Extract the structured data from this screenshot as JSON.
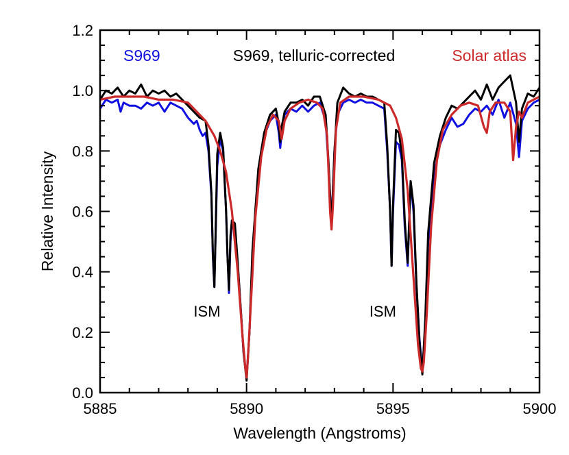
{
  "chart_data": {
    "type": "line",
    "title": "",
    "xlabel": "Wavelength (Angstroms)",
    "ylabel": "Relative Intensity",
    "xlim": [
      5885,
      5900
    ],
    "ylim": [
      0.0,
      1.2
    ],
    "xticks": [
      5885,
      5890,
      5895,
      5900
    ],
    "xtick_labels": [
      "5885",
      "5890",
      "5895",
      "5900"
    ],
    "yticks": [
      0.0,
      0.2,
      0.4,
      0.6,
      0.8,
      1.0,
      1.2
    ],
    "ytick_labels": [
      "0.0",
      "0.2",
      "0.4",
      "0.6",
      "0.8",
      "1.0",
      "1.2"
    ],
    "grid": false,
    "legend_position": "top",
    "series": [
      {
        "name": "S969",
        "color": "#1010e0",
        "x": [
          5885.0,
          5885.2,
          5885.4,
          5885.6,
          5885.7,
          5885.8,
          5886.0,
          5886.2,
          5886.4,
          5886.6,
          5886.8,
          5887.0,
          5887.2,
          5887.4,
          5887.6,
          5887.8,
          5888.0,
          5888.2,
          5888.3,
          5888.4,
          5888.5,
          5888.6,
          5888.7,
          5888.8,
          5888.85,
          5888.9,
          5888.95,
          5889.0,
          5889.1,
          5889.2,
          5889.3,
          5889.35,
          5889.4,
          5889.45,
          5889.5,
          5889.6,
          5889.7,
          5889.8,
          5889.9,
          5890.0,
          5890.1,
          5890.2,
          5890.4,
          5890.6,
          5890.8,
          5891.0,
          5891.1,
          5891.15,
          5891.2,
          5891.3,
          5891.5,
          5891.7,
          5891.9,
          5892.1,
          5892.3,
          5892.5,
          5892.7,
          5892.8,
          5892.9,
          5893.0,
          5893.1,
          5893.3,
          5893.5,
          5893.7,
          5893.9,
          5894.1,
          5894.3,
          5894.5,
          5894.7,
          5894.8,
          5894.9,
          5894.95,
          5895.0,
          5895.1,
          5895.2,
          5895.3,
          5895.4,
          5895.5,
          5895.6,
          5895.7,
          5895.8,
          5895.9,
          5896.0,
          5896.1,
          5896.2,
          5896.4,
          5896.6,
          5896.8,
          5897.0,
          5897.2,
          5897.4,
          5897.6,
          5897.8,
          5898.0,
          5898.2,
          5898.4,
          5898.6,
          5898.8,
          5899.0,
          5899.2,
          5899.3,
          5899.4,
          5899.6,
          5899.8,
          5900.0
        ],
        "y": [
          0.94,
          0.97,
          0.96,
          0.97,
          0.93,
          0.96,
          0.95,
          0.95,
          0.94,
          0.96,
          0.95,
          0.96,
          0.93,
          0.96,
          0.95,
          0.94,
          0.91,
          0.89,
          0.9,
          0.87,
          0.85,
          0.86,
          0.8,
          0.65,
          0.45,
          0.35,
          0.55,
          0.75,
          0.84,
          0.8,
          0.6,
          0.45,
          0.33,
          0.5,
          0.57,
          0.55,
          0.42,
          0.28,
          0.13,
          0.05,
          0.2,
          0.45,
          0.72,
          0.85,
          0.9,
          0.92,
          0.86,
          0.81,
          0.86,
          0.92,
          0.94,
          0.93,
          0.95,
          0.93,
          0.95,
          0.96,
          0.9,
          0.75,
          0.56,
          0.8,
          0.92,
          0.96,
          0.97,
          0.96,
          0.97,
          0.96,
          0.96,
          0.95,
          0.94,
          0.8,
          0.6,
          0.42,
          0.6,
          0.83,
          0.82,
          0.77,
          0.55,
          0.42,
          0.7,
          0.6,
          0.35,
          0.18,
          0.07,
          0.22,
          0.5,
          0.72,
          0.82,
          0.87,
          0.91,
          0.88,
          0.89,
          0.92,
          0.94,
          0.93,
          0.95,
          0.92,
          0.97,
          0.91,
          0.96,
          0.89,
          0.78,
          0.9,
          0.94,
          0.96,
          0.97
        ]
      },
      {
        "name": "S969, telluric-corrected",
        "color": "#000000",
        "x": [
          5885.0,
          5885.2,
          5885.4,
          5885.6,
          5885.8,
          5886.0,
          5886.2,
          5886.4,
          5886.6,
          5886.8,
          5887.0,
          5887.2,
          5887.4,
          5887.6,
          5887.8,
          5888.0,
          5888.2,
          5888.4,
          5888.6,
          5888.7,
          5888.8,
          5888.85,
          5888.9,
          5888.95,
          5889.0,
          5889.1,
          5889.2,
          5889.3,
          5889.35,
          5889.4,
          5889.45,
          5889.5,
          5889.6,
          5889.7,
          5889.8,
          5889.9,
          5890.0,
          5890.1,
          5890.2,
          5890.4,
          5890.6,
          5890.8,
          5891.0,
          5891.1,
          5891.15,
          5891.2,
          5891.3,
          5891.5,
          5891.7,
          5891.9,
          5892.1,
          5892.3,
          5892.5,
          5892.7,
          5892.8,
          5892.9,
          5893.0,
          5893.1,
          5893.3,
          5893.5,
          5893.7,
          5893.9,
          5894.1,
          5894.3,
          5894.5,
          5894.7,
          5894.8,
          5894.9,
          5894.95,
          5895.0,
          5895.1,
          5895.2,
          5895.3,
          5895.4,
          5895.5,
          5895.6,
          5895.7,
          5895.8,
          5895.9,
          5896.0,
          5896.1,
          5896.2,
          5896.4,
          5896.6,
          5896.8,
          5897.0,
          5897.2,
          5897.4,
          5897.6,
          5897.8,
          5898.0,
          5898.2,
          5898.4,
          5898.6,
          5898.8,
          5899.0,
          5899.2,
          5899.3,
          5899.4,
          5899.6,
          5899.8,
          5900.0
        ],
        "y": [
          0.97,
          1.0,
          0.99,
          1.01,
          0.98,
          1.0,
          0.99,
          1.02,
          0.98,
          1.0,
          0.99,
          1.0,
          0.98,
          0.99,
          0.97,
          0.95,
          0.93,
          0.91,
          0.9,
          0.82,
          0.66,
          0.46,
          0.35,
          0.56,
          0.79,
          0.86,
          0.81,
          0.6,
          0.45,
          0.34,
          0.52,
          0.57,
          0.56,
          0.43,
          0.28,
          0.13,
          0.04,
          0.2,
          0.47,
          0.74,
          0.86,
          0.92,
          0.94,
          0.89,
          0.83,
          0.88,
          0.93,
          0.96,
          0.96,
          0.97,
          0.95,
          0.98,
          0.98,
          0.92,
          0.76,
          0.55,
          0.8,
          0.96,
          1.01,
          0.99,
          0.98,
          0.99,
          0.98,
          0.98,
          0.97,
          0.96,
          0.82,
          0.6,
          0.42,
          0.62,
          0.87,
          0.86,
          0.79,
          0.57,
          0.43,
          0.7,
          0.62,
          0.36,
          0.17,
          0.06,
          0.24,
          0.53,
          0.76,
          0.85,
          0.91,
          0.95,
          0.94,
          0.96,
          0.98,
          1.0,
          0.97,
          1.02,
          0.97,
          1.01,
          1.03,
          1.05,
          0.96,
          0.83,
          0.94,
          0.99,
          0.98,
          1.01
        ]
      },
      {
        "name": "Solar atlas",
        "color": "#cc2a2a",
        "x": [
          5885.0,
          5885.5,
          5886.0,
          5886.5,
          5887.0,
          5887.5,
          5888.0,
          5888.3,
          5888.6,
          5888.9,
          5889.1,
          5889.3,
          5889.5,
          5889.7,
          5889.85,
          5889.95,
          5890.0,
          5890.05,
          5890.15,
          5890.3,
          5890.5,
          5890.7,
          5890.9,
          5891.1,
          5891.2,
          5891.3,
          5891.5,
          5891.8,
          5892.1,
          5892.4,
          5892.6,
          5892.75,
          5892.85,
          5892.9,
          5892.95,
          5893.05,
          5893.2,
          5893.5,
          5894.0,
          5894.5,
          5894.9,
          5895.1,
          5895.3,
          5895.5,
          5895.7,
          5895.85,
          5895.95,
          5896.0,
          5896.05,
          5896.15,
          5896.3,
          5896.5,
          5896.7,
          5897.0,
          5897.3,
          5897.6,
          5897.9,
          5898.1,
          5898.2,
          5898.3,
          5898.5,
          5898.8,
          5899.0,
          5899.1,
          5899.2,
          5899.3,
          5899.4,
          5899.6,
          5899.8,
          5900.0
        ],
        "y": [
          0.97,
          0.98,
          0.98,
          0.98,
          0.97,
          0.97,
          0.96,
          0.93,
          0.9,
          0.85,
          0.8,
          0.73,
          0.6,
          0.4,
          0.2,
          0.09,
          0.05,
          0.12,
          0.3,
          0.58,
          0.78,
          0.88,
          0.92,
          0.9,
          0.84,
          0.9,
          0.94,
          0.96,
          0.97,
          0.96,
          0.94,
          0.85,
          0.6,
          0.54,
          0.62,
          0.87,
          0.96,
          0.98,
          0.98,
          0.97,
          0.95,
          0.91,
          0.84,
          0.67,
          0.38,
          0.16,
          0.08,
          0.07,
          0.1,
          0.26,
          0.55,
          0.77,
          0.87,
          0.92,
          0.95,
          0.96,
          0.95,
          0.88,
          0.86,
          0.93,
          0.96,
          0.96,
          0.93,
          0.77,
          0.88,
          0.93,
          0.91,
          0.96,
          0.97,
          0.98
        ]
      }
    ],
    "annotations": [
      {
        "text": "ISM",
        "x": 5888.65,
        "y": 0.27
      },
      {
        "text": "ISM",
        "x": 5894.65,
        "y": 0.27
      }
    ]
  }
}
